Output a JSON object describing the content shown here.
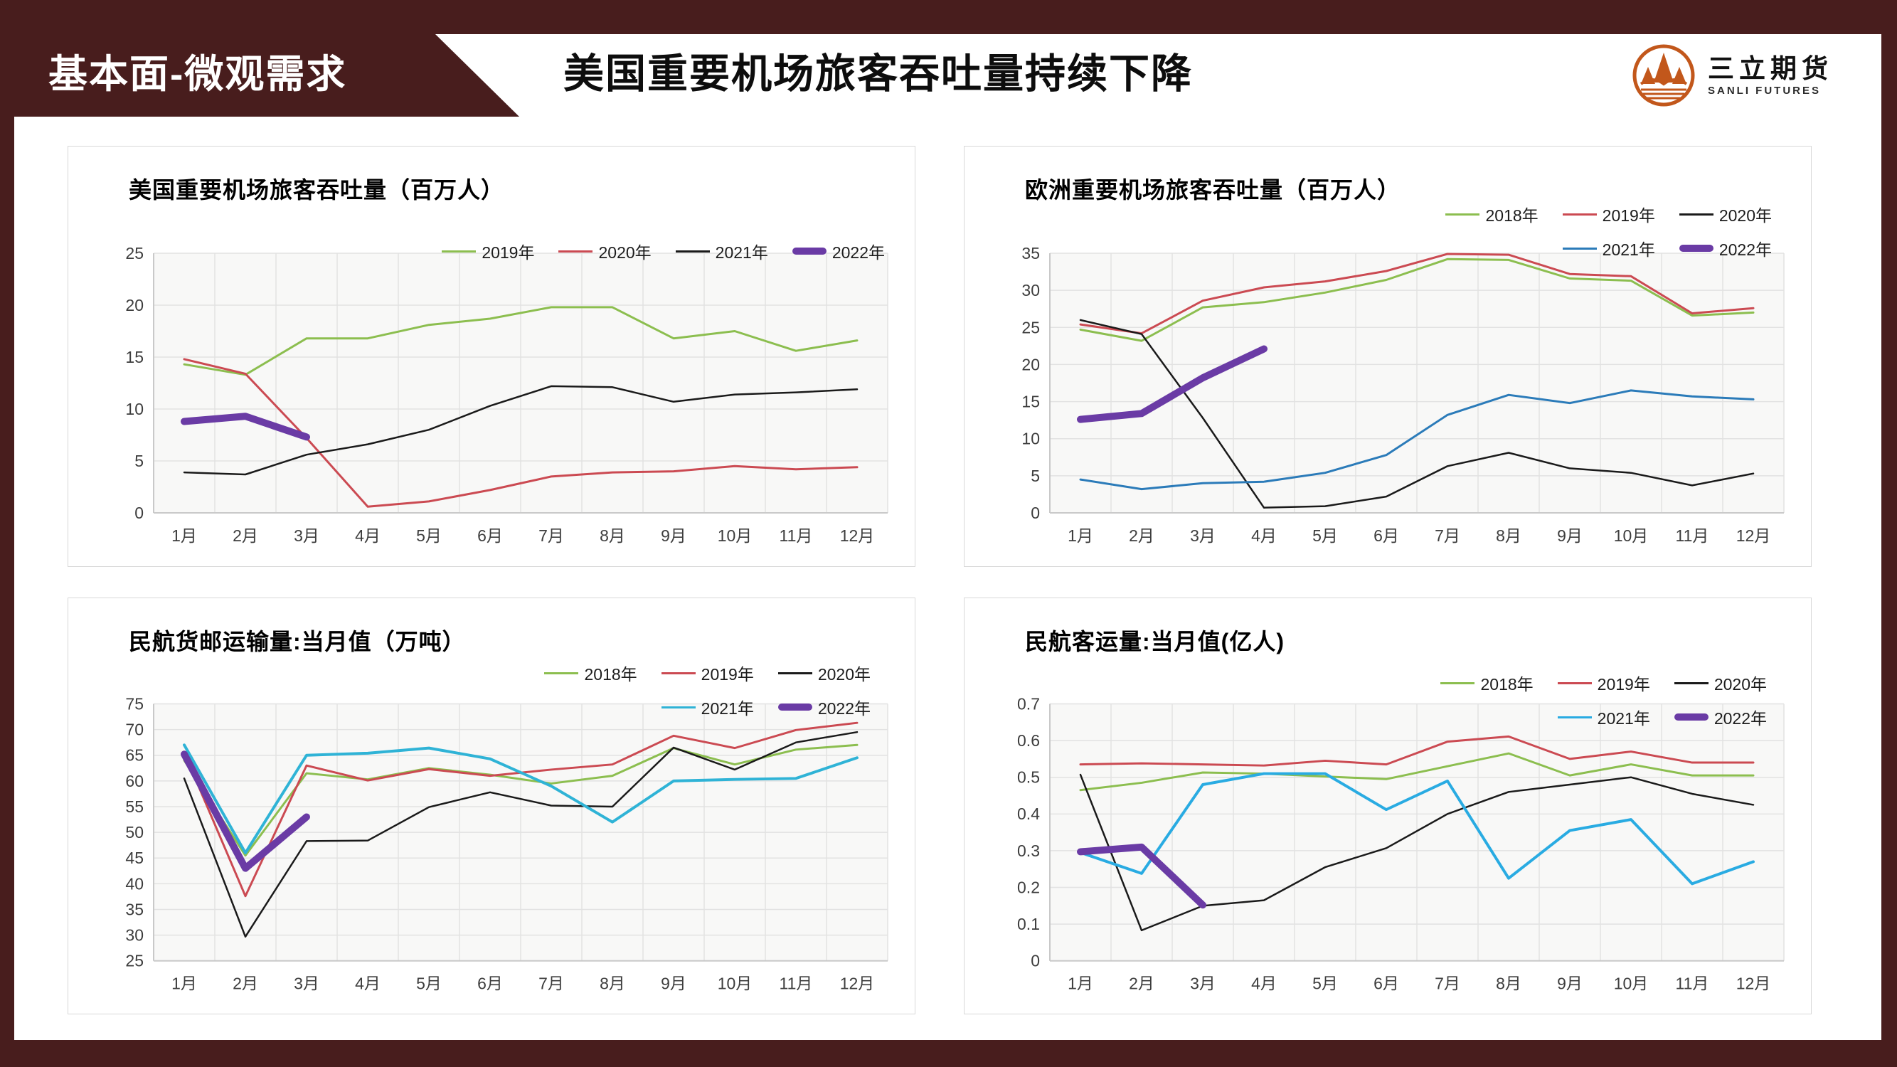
{
  "header": {
    "section_label": "基本面-微观需求",
    "title": "美国重要机场旅客吞吐量持续下降",
    "logo": {
      "name_cn": "三立期货",
      "name_en": "SANLI FUTURES"
    }
  },
  "colors": {
    "frame_maroon": "#481d1d",
    "logo_orange": "#c2571b",
    "green": "#8cbe4f",
    "red": "#cb4a52",
    "black": "#1a1a1a",
    "blue": "#2b7bb9",
    "cyan": "#2fb3d6",
    "purple": "#6a3ba5"
  },
  "chart_data": [
    {
      "type": "line",
      "title": "美国重要机场旅客吞吐量（百万人）",
      "categories": [
        "1月",
        "2月",
        "3月",
        "4月",
        "5月",
        "6月",
        "7月",
        "8月",
        "9月",
        "10月",
        "11月",
        "12月"
      ],
      "y_axis": {
        "min": 0,
        "max": 25,
        "step": 5,
        "decimals": 0
      },
      "grid": true,
      "legend_position": "top-right-inside",
      "legend_rows": [
        [
          0,
          1,
          2,
          3
        ]
      ],
      "series": [
        {
          "name": "2019年",
          "color": "#8cbe4f",
          "width": 3,
          "values": [
            14.3,
            13.3,
            16.8,
            16.8,
            18.1,
            18.7,
            19.8,
            19.8,
            16.8,
            17.5,
            15.6,
            16.6
          ]
        },
        {
          "name": "2020年",
          "color": "#cb4a52",
          "width": 3,
          "values": [
            14.8,
            13.4,
            7.2,
            0.6,
            1.1,
            2.2,
            3.5,
            3.9,
            4.0,
            4.5,
            4.2,
            4.4
          ]
        },
        {
          "name": "2021年",
          "color": "#1a1a1a",
          "width": 2.5,
          "values": [
            3.9,
            3.7,
            5.6,
            6.6,
            8.0,
            10.3,
            12.2,
            12.1,
            10.7,
            11.4,
            11.6,
            11.9
          ]
        },
        {
          "name": "2022年",
          "color": "#6a3ba5",
          "width": 10,
          "values": [
            8.8,
            9.3,
            7.3
          ]
        }
      ]
    },
    {
      "type": "line",
      "title": "欧洲重要机场旅客吞吐量（百万人）",
      "categories": [
        "1月",
        "2月",
        "3月",
        "4月",
        "5月",
        "6月",
        "7月",
        "8月",
        "9月",
        "10月",
        "11月",
        "12月"
      ],
      "y_axis": {
        "min": 0,
        "max": 35,
        "step": 5,
        "decimals": 0
      },
      "grid": true,
      "legend_position": "top-right-above",
      "legend_rows": [
        [
          0,
          1,
          2
        ],
        [
          3,
          4
        ]
      ],
      "series": [
        {
          "name": "2018年",
          "color": "#8cbe4f",
          "width": 3,
          "values": [
            24.7,
            23.2,
            27.7,
            28.4,
            29.7,
            31.4,
            34.2,
            34.1,
            31.6,
            31.3,
            26.6,
            27.0
          ]
        },
        {
          "name": "2019年",
          "color": "#cb4a52",
          "width": 3,
          "values": [
            25.4,
            24.2,
            28.6,
            30.4,
            31.2,
            32.6,
            34.9,
            34.8,
            32.2,
            31.9,
            26.9,
            27.6
          ]
        },
        {
          "name": "2020年",
          "color": "#1a1a1a",
          "width": 2.5,
          "values": [
            26.0,
            24.1,
            12.8,
            0.7,
            0.9,
            2.2,
            6.3,
            8.1,
            6.0,
            5.4,
            3.7,
            5.3
          ]
        },
        {
          "name": "2021年",
          "color": "#2b7bb9",
          "width": 3,
          "values": [
            4.5,
            3.2,
            4.0,
            4.2,
            5.4,
            7.8,
            13.2,
            15.9,
            14.8,
            16.5,
            15.7,
            15.3
          ]
        },
        {
          "name": "2022年",
          "color": "#6a3ba5",
          "width": 10,
          "values": [
            12.6,
            13.4,
            18.2,
            22.1
          ]
        }
      ]
    },
    {
      "type": "line",
      "title": "民航货邮运输量:当月值（万吨）",
      "categories": [
        "1月",
        "2月",
        "3月",
        "4月",
        "5月",
        "6月",
        "7月",
        "8月",
        "9月",
        "10月",
        "11月",
        "12月"
      ],
      "y_axis": {
        "min": 25,
        "max": 75,
        "step": 5,
        "decimals": 0
      },
      "grid": true,
      "legend_position": "top-right-above",
      "legend_rows": [
        [
          0,
          1,
          2
        ],
        [
          3,
          4
        ]
      ],
      "series": [
        {
          "name": "2018年",
          "color": "#8cbe4f",
          "width": 3,
          "values": [
            64.0,
            45.5,
            61.5,
            60.3,
            62.5,
            61.2,
            59.5,
            61.0,
            66.4,
            63.2,
            66.1,
            67.0
          ]
        },
        {
          "name": "2019年",
          "color": "#cb4a52",
          "width": 3,
          "values": [
            65.5,
            37.6,
            63.0,
            60.1,
            62.3,
            61.0,
            62.2,
            63.2,
            68.8,
            66.4,
            69.9,
            71.3
          ]
        },
        {
          "name": "2020年",
          "color": "#1a1a1a",
          "width": 2.5,
          "values": [
            60.5,
            29.7,
            48.3,
            48.4,
            54.9,
            57.8,
            55.2,
            55.0,
            66.5,
            62.2,
            67.5,
            69.5
          ]
        },
        {
          "name": "2021年",
          "color": "#2fb3d6",
          "width": 4,
          "values": [
            67.0,
            46.0,
            65.0,
            65.4,
            66.4,
            64.3,
            59.0,
            52.0,
            60.0,
            60.3,
            60.5,
            64.5
          ]
        },
        {
          "name": "2022年",
          "color": "#6a3ba5",
          "width": 10,
          "values": [
            65.2,
            43.0,
            53.0
          ]
        }
      ]
    },
    {
      "type": "line",
      "title": "民航客运量:当月值(亿人)",
      "categories": [
        "1月",
        "2月",
        "3月",
        "4月",
        "5月",
        "6月",
        "7月",
        "8月",
        "9月",
        "10月",
        "11月",
        "12月"
      ],
      "y_axis": {
        "min": 0,
        "max": 0.7,
        "step": 0.1,
        "decimals": 1
      },
      "grid": true,
      "legend_position": "top-right-above",
      "legend_rows": [
        [
          0,
          1,
          2
        ],
        [
          3,
          4
        ]
      ],
      "series": [
        {
          "name": "2018年",
          "color": "#8cbe4f",
          "width": 3,
          "values": [
            0.465,
            0.485,
            0.513,
            0.51,
            0.502,
            0.495,
            0.53,
            0.565,
            0.505,
            0.535,
            0.505,
            0.505
          ]
        },
        {
          "name": "2019年",
          "color": "#cb4a52",
          "width": 3,
          "values": [
            0.535,
            0.538,
            0.535,
            0.532,
            0.545,
            0.535,
            0.597,
            0.611,
            0.55,
            0.57,
            0.54,
            0.54
          ]
        },
        {
          "name": "2020年",
          "color": "#1a1a1a",
          "width": 2.5,
          "values": [
            0.507,
            0.083,
            0.15,
            0.165,
            0.255,
            0.307,
            0.4,
            0.46,
            0.48,
            0.5,
            0.455,
            0.425
          ]
        },
        {
          "name": "2021年",
          "color": "#29abe2",
          "width": 4,
          "values": [
            0.295,
            0.238,
            0.48,
            0.51,
            0.51,
            0.412,
            0.49,
            0.225,
            0.355,
            0.385,
            0.21,
            0.27
          ]
        },
        {
          "name": "2022年",
          "color": "#6a3ba5",
          "width": 10,
          "values": [
            0.297,
            0.31,
            0.152
          ]
        }
      ]
    }
  ]
}
